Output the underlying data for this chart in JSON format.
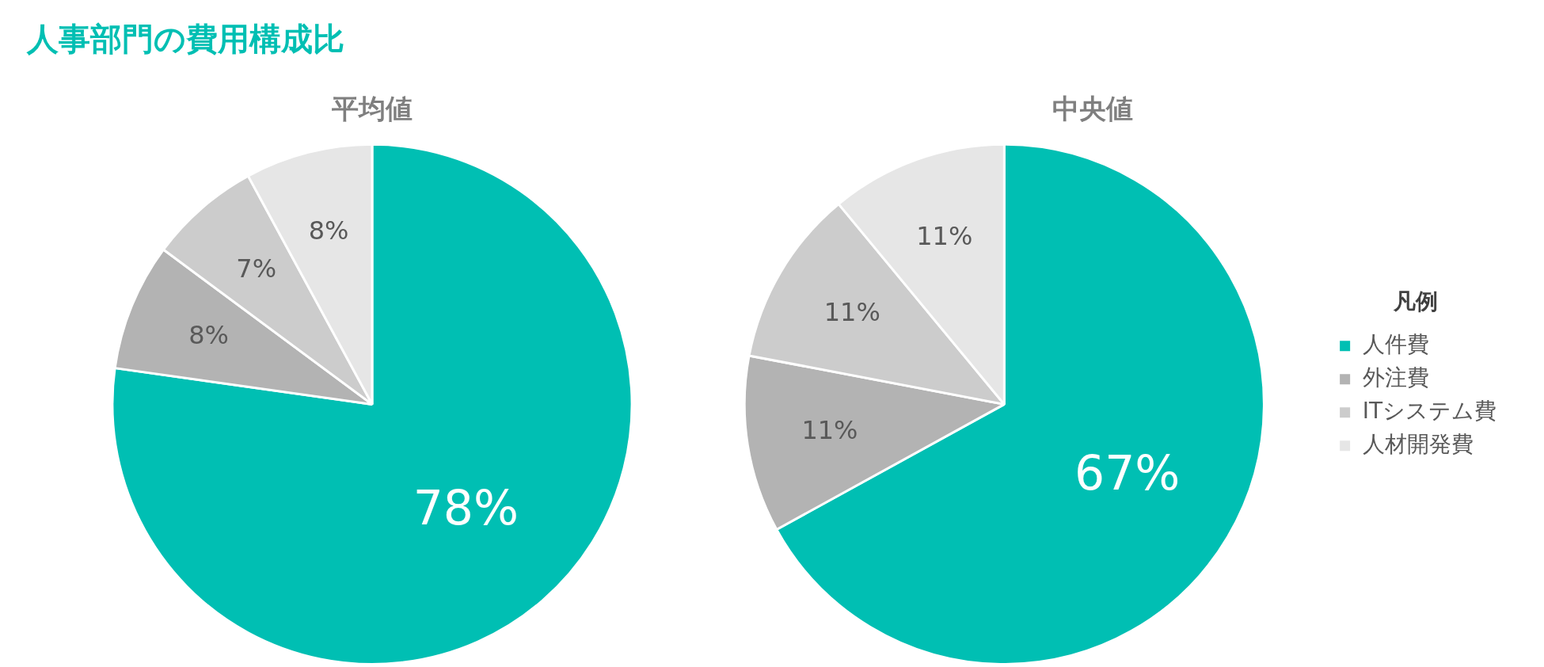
{
  "chart_data": [
    {
      "type": "other",
      "title": "人事部門の費用構成比"
    },
    {
      "type": "pie",
      "title": "平均値",
      "categories": [
        null,
        null,
        null,
        null
      ],
      "values": [
        78,
        8,
        7,
        8
      ],
      "value_labels": [
        "78%",
        "8%",
        "7%",
        "8%"
      ],
      "colors": [
        "#00bfb3",
        "#b3b3b3",
        "#cccccc",
        "#e6e6e6"
      ],
      "legend": false
    },
    {
      "type": "pie",
      "title": "中央値",
      "categories": [
        "人件費",
        "外注費",
        "ITシステム費",
        "人材開発費"
      ],
      "values": [
        67,
        11,
        11,
        11
      ],
      "value_labels": [
        "67%",
        "11%",
        "11%",
        "11%"
      ],
      "colors": [
        "#00bfb3",
        "#b3b3b3",
        "#cccccc",
        "#e6e6e6"
      ],
      "legend": "right",
      "legend_title": "凡例"
    }
  ]
}
